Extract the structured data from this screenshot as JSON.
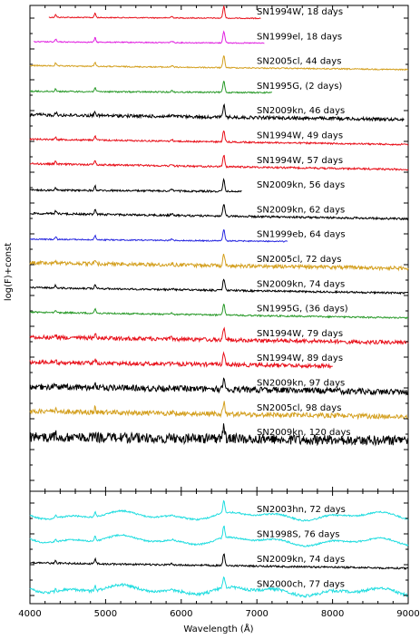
{
  "chart_data": {
    "type": "line",
    "xlabel": "Wavelength (Å)",
    "ylabel": "log(F)+const",
    "xlim": [
      4000,
      9000
    ],
    "x_ticks": [
      4000,
      5000,
      6000,
      7000,
      8000,
      9000
    ],
    "x_tick_labels": [
      "4000",
      "5000",
      "6000",
      "7000",
      "8000",
      "9000"
    ],
    "panels": [
      {
        "name": "top",
        "series": [
          {
            "label": "SN1994W, 18 days",
            "color": "#e8101a",
            "x_start": 4250,
            "x_end": 7050,
            "noise": 0.5,
            "slope": 0.1,
            "level": 0
          },
          {
            "label": "SN1999el, 18 days",
            "color": "#e020e0",
            "x_start": 4050,
            "x_end": 7100,
            "noise": 0.5,
            "slope": 0.12,
            "level": 1
          },
          {
            "label": "SN2005cl, 44 days",
            "color": "#d4a020",
            "x_start": 4000,
            "x_end": 9000,
            "noise": 0.6,
            "slope": 0.22,
            "level": 2
          },
          {
            "label": "SN1995G, (2 days)",
            "color": "#2a9a2a",
            "x_start": 4000,
            "x_end": 7200,
            "noise": 0.7,
            "slope": 0.12,
            "level": 3
          },
          {
            "label": "SN2009kn, 46 days",
            "color": "#000000",
            "x_start": 4000,
            "x_end": 8950,
            "noise": 1.6,
            "slope": 0.26,
            "level": 4
          },
          {
            "label": "SN1994W, 49 days",
            "color": "#e8101a",
            "x_start": 4000,
            "x_end": 9000,
            "noise": 0.8,
            "slope": 0.3,
            "level": 5
          },
          {
            "label": "SN1994W, 57 days",
            "color": "#e8101a",
            "x_start": 4000,
            "x_end": 9000,
            "noise": 0.9,
            "slope": 0.32,
            "level": 6
          },
          {
            "label": "SN2009kn, 56 days",
            "color": "#000000",
            "x_start": 4000,
            "x_end": 6800,
            "noise": 0.9,
            "slope": 0.14,
            "level": 7
          },
          {
            "label": "SN2009kn, 62 days",
            "color": "#000000",
            "x_start": 4000,
            "x_end": 9000,
            "noise": 1.0,
            "slope": 0.3,
            "level": 8
          },
          {
            "label": "SN1999eb, 64 days",
            "color": "#2828e0",
            "x_start": 4000,
            "x_end": 7400,
            "noise": 0.6,
            "slope": 0.18,
            "level": 9
          },
          {
            "label": "SN2005cl, 72 days",
            "color": "#d4a020",
            "x_start": 4000,
            "x_end": 9000,
            "noise": 1.8,
            "slope": 0.3,
            "level": 10
          },
          {
            "label": "SN2009kn, 74 days",
            "color": "#000000",
            "x_start": 4000,
            "x_end": 9000,
            "noise": 0.9,
            "slope": 0.3,
            "level": 11
          },
          {
            "label": "SN1995G, (36 days)",
            "color": "#2a9a2a",
            "x_start": 4000,
            "x_end": 9000,
            "noise": 0.8,
            "slope": 0.32,
            "level": 12
          },
          {
            "label": "SN1994W, 79 days",
            "color": "#e8101a",
            "x_start": 4000,
            "x_end": 9000,
            "noise": 2.0,
            "slope": 0.3,
            "level": 13
          },
          {
            "label": "SN1994W, 89 days",
            "color": "#e8101a",
            "x_start": 4000,
            "x_end": 8000,
            "noise": 2.0,
            "slope": 0.26,
            "level": 14
          },
          {
            "label": "SN2009kn, 97 days",
            "color": "#000000",
            "x_start": 4000,
            "x_end": 9000,
            "noise": 3.0,
            "slope": 0.3,
            "level": 15
          },
          {
            "label": "SN2005cl, 98 days",
            "color": "#d4a020",
            "x_start": 4000,
            "x_end": 9000,
            "noise": 2.4,
            "slope": 0.3,
            "level": 16
          },
          {
            "label": "SN2009kn, 120 days",
            "color": "#000000",
            "x_start": 4000,
            "x_end": 9000,
            "noise": 5.0,
            "slope": 0.2,
            "level": 17
          }
        ]
      },
      {
        "name": "bottom",
        "series": [
          {
            "label": "SN2003hn, 72 days",
            "color": "#22dde0",
            "x_start": 4000,
            "x_end": 9000,
            "noise": 0.8,
            "slope": 0.05,
            "level": 0
          },
          {
            "label": "SN1998S, 76 days",
            "color": "#22dde0",
            "x_start": 4000,
            "x_end": 9000,
            "noise": 0.8,
            "slope": 0.2,
            "level": 1
          },
          {
            "label": "SN2009kn, 74 days",
            "color": "#000000",
            "x_start": 4000,
            "x_end": 9000,
            "noise": 0.9,
            "slope": 0.3,
            "level": 2
          },
          {
            "label": "SN2000ch, 77 days",
            "color": "#22dde0",
            "x_start": 4000,
            "x_end": 9000,
            "noise": 1.4,
            "slope": 0.22,
            "level": 3
          }
        ]
      }
    ]
  }
}
